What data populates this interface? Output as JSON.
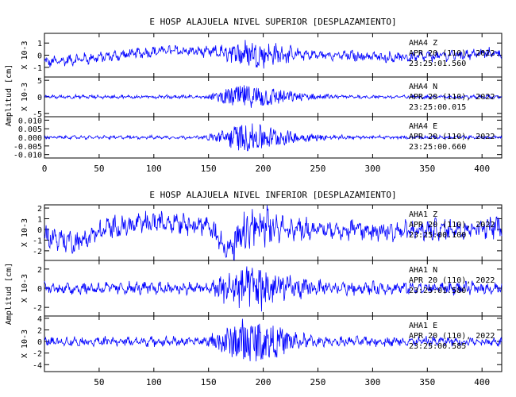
{
  "chart_data": [
    {
      "type": "line",
      "title": "E HOSP ALAJUELA NIVEL SUPERIOR [DESPLAZAMIENTO]",
      "ylabel_group": "Amplitud [cm]",
      "x_ticks": [
        0,
        50,
        100,
        150,
        200,
        250,
        300,
        350,
        400
      ],
      "x_ticks_shown": [
        "0",
        "50",
        "100",
        "150",
        "200",
        "250",
        "300",
        "350",
        "400"
      ],
      "xlim": [
        0,
        418
      ],
      "color": "#0000ff",
      "panels": [
        {
          "ylabel": "X 10-3",
          "ylim": [
            -1.8,
            1.8
          ],
          "yticks": [
            -1,
            0,
            1
          ],
          "ytick_labels": [
            "-1",
            "0",
            "1"
          ],
          "station": "AHA4",
          "component": "Z",
          "date": "APR 20 (110), 2022",
          "time": "23:25:01.560",
          "noise_amp": 0.32,
          "strong_amp": 1.0,
          "drift": [
            [
              0,
              -0.6
            ],
            [
              60,
              -0.1
            ],
            [
              110,
              0.4
            ],
            [
              140,
              0.3
            ],
            [
              200,
              0.1
            ],
            [
              260,
              0.0
            ],
            [
              330,
              -0.2
            ],
            [
              418,
              0.2
            ]
          ]
        },
        {
          "ylabel": "X 10-3",
          "ylim": [
            -6,
            6
          ],
          "yticks": [
            -5,
            0,
            5
          ],
          "ytick_labels": [
            "-5",
            "0",
            "5"
          ],
          "station": "AHA4",
          "component": "N",
          "date": "APR 20 (110), 2022",
          "time": "23:25:00.015",
          "noise_amp": 0.35,
          "strong_amp": 3.6,
          "drift": [
            [
              0,
              0
            ],
            [
              418,
              0
            ]
          ]
        },
        {
          "ylabel": "",
          "ylim": [
            -0.012,
            0.012
          ],
          "yticks": [
            -0.01,
            -0.005,
            0,
            0.005,
            0.01
          ],
          "ytick_labels": [
            "-0.010",
            "-0.005",
            "0.000",
            "0.005",
            "0.010"
          ],
          "station": "AHA4",
          "component": "E",
          "date": "APR 20 (110), 2022",
          "time": "23:25:00.660",
          "noise_amp": 0.0006,
          "strong_amp": 0.008,
          "drift": [
            [
              0,
              0
            ],
            [
              418,
              0
            ]
          ]
        }
      ]
    },
    {
      "type": "line",
      "title": "E HOSP ALAJUELA NIVEL INFERIOR [DESPLAZAMIENTO]",
      "ylabel_group": "Amplitud [cm]",
      "x_ticks": [
        50,
        100,
        150,
        200,
        250,
        300,
        350,
        400
      ],
      "x_ticks_shown": [
        "50",
        "100",
        "150",
        "200",
        "250",
        "300",
        "350",
        "400"
      ],
      "xlim": [
        0,
        418
      ],
      "color": "#0000ff",
      "panels": [
        {
          "ylabel": "X 10-3",
          "ylim": [
            -2.9,
            2.3
          ],
          "yticks": [
            -2,
            -1,
            0,
            1,
            2
          ],
          "ytick_labels": [
            "-2",
            "-1",
            "0",
            "1",
            "2"
          ],
          "station": "AHA1",
          "component": "Z",
          "date": "APR 20 (110), 2022",
          "time": "23:25:00.100",
          "noise_amp": 0.75,
          "strong_amp": 1.6,
          "drift": [
            [
              0,
              -0.6
            ],
            [
              30,
              -1.2
            ],
            [
              60,
              0.2
            ],
            [
              120,
              0.8
            ],
            [
              150,
              0.3
            ],
            [
              170,
              -2.0
            ],
            [
              190,
              0.2
            ],
            [
              260,
              0.0
            ],
            [
              330,
              -0.2
            ],
            [
              418,
              0.3
            ]
          ]
        },
        {
          "ylabel": "X 10-3",
          "ylim": [
            -2.9,
            2.9
          ],
          "yticks": [
            -2,
            0,
            2
          ],
          "ytick_labels": [
            "-2",
            "0",
            "2"
          ],
          "station": "AHA1",
          "component": "N",
          "date": "APR 20 (110), 2022",
          "time": "23:25:01.580",
          "noise_amp": 0.45,
          "strong_amp": 2.3,
          "drift": [
            [
              0,
              0
            ],
            [
              418,
              0
            ]
          ]
        },
        {
          "ylabel": "X 10-3",
          "ylim": [
            -5.2,
            4.4
          ],
          "yticks": [
            -4,
            -2,
            0,
            2,
            4
          ],
          "ytick_labels": [
            "-4",
            "-2",
            "0",
            "2",
            "4"
          ],
          "station": "AHA1",
          "component": "E",
          "date": "APR 20 (110), 2022",
          "time": "23:25:00.585",
          "noise_amp": 0.55,
          "strong_amp": 3.6,
          "drift": [
            [
              0,
              0
            ],
            [
              418,
              0
            ]
          ]
        }
      ]
    }
  ]
}
